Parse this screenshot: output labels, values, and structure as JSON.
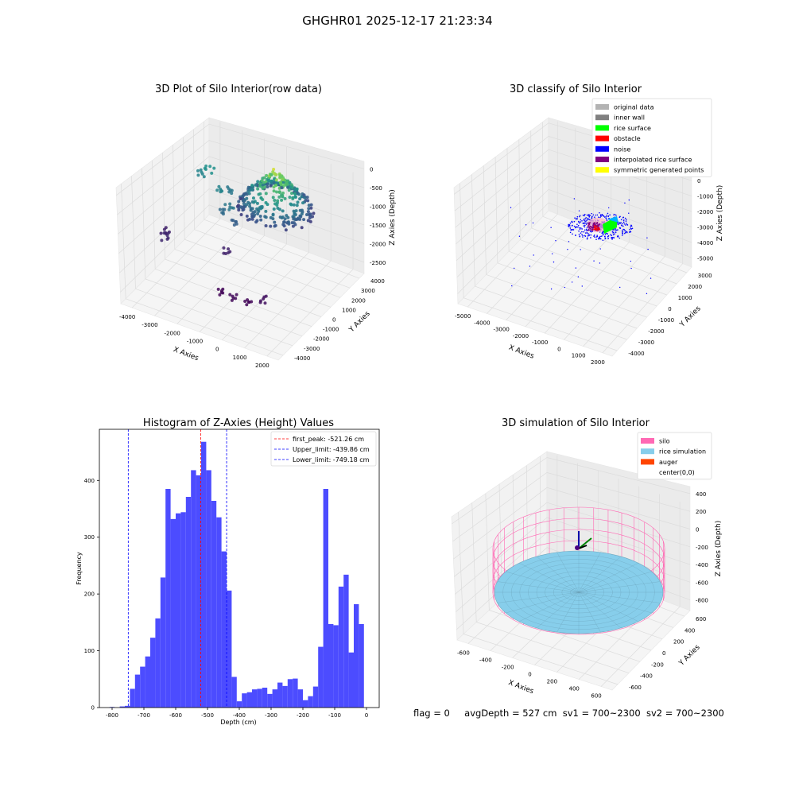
{
  "figure": {
    "suptitle": "GHGHR01 2025-12-17 21:23:34",
    "status": {
      "flag": "flag = 0",
      "avg": "avgDepth = 527 cm",
      "sv1": "sv1 = 700~2300",
      "sv2": "sv2 = 700~2300"
    }
  },
  "chart_data": [
    {
      "type": "scatter",
      "projection": "3d",
      "title": "3D Plot of Silo Interior(row data)",
      "xlabel": "X Axies",
      "ylabel": "Y Axies",
      "zlabel": "Z Axies (Depth)",
      "x_ticks": [
        "-4000",
        "-3000",
        "-2000",
        "-1000",
        "0",
        "1000",
        "2000"
      ],
      "y_ticks": [
        "4000",
        "3000",
        "2000",
        "1000",
        "0",
        "-1000",
        "-2000",
        "-3000",
        "-4000"
      ],
      "z_ticks": [
        "0",
        "-500",
        "-1000",
        "-1500",
        "-2000",
        "-2500"
      ],
      "colormap": "viridis",
      "grid": true
    },
    {
      "type": "scatter",
      "projection": "3d",
      "title": "3D classify of Silo Interior",
      "xlabel": "X Axies",
      "ylabel": "Y Axies",
      "zlabel": "Z Axies (Depth)",
      "x_ticks": [
        "-5000",
        "-4000",
        "-3000",
        "-2000",
        "-1000",
        "0",
        "1000",
        "2000"
      ],
      "y_ticks": [
        "3000",
        "2000",
        "1000",
        "0",
        "-1000",
        "-2000",
        "-3000",
        "-4000"
      ],
      "z_ticks": [
        "1000",
        "0",
        "-1000",
        "-2000",
        "-3000",
        "-4000",
        "-5000"
      ],
      "legend_position": "top-right",
      "legend": [
        {
          "label": "original data",
          "color": "#b3b3b3"
        },
        {
          "label": "inner wall",
          "color": "#808080"
        },
        {
          "label": "rice surface",
          "color": "#00ff00"
        },
        {
          "label": "obstacle",
          "color": "#ff0000"
        },
        {
          "label": "noise",
          "color": "#0000ff"
        },
        {
          "label": "interpolated rice surface",
          "color": "#800080"
        },
        {
          "label": "symmetric generated points",
          "color": "#ffff00"
        }
      ],
      "grid": true
    },
    {
      "type": "bar",
      "title": "Histogram of Z-Axies (Height) Values",
      "xlabel": "Depth (cm)",
      "ylabel": "Frequency",
      "xlim": [
        -840,
        40
      ],
      "ylim": [
        0,
        490
      ],
      "x_ticks": [
        -800,
        -700,
        -600,
        -500,
        -400,
        -300,
        -200,
        -100,
        0
      ],
      "y_ticks": [
        0,
        100,
        200,
        300,
        400
      ],
      "bin_width": 16,
      "bar_color": "#4c4cff",
      "bins_left": [
        -808,
        -792,
        -776,
        -760,
        -744,
        -728,
        -712,
        -696,
        -680,
        -664,
        -648,
        -632,
        -616,
        -600,
        -584,
        -568,
        -552,
        -536,
        -520,
        -504,
        -488,
        -472,
        -456,
        -440,
        -424,
        -408,
        -392,
        -376,
        -360,
        -344,
        -328,
        -312,
        -296,
        -280,
        -264,
        -248,
        -232,
        -216,
        -200,
        -184,
        -168,
        -152,
        -136,
        -120,
        -104,
        -88,
        -72,
        -56,
        -40,
        -24,
        -8
      ],
      "values": [
        1,
        0,
        2,
        3,
        33,
        58,
        72,
        90,
        123,
        157,
        229,
        385,
        332,
        342,
        344,
        371,
        418,
        409,
        468,
        418,
        364,
        335,
        275,
        206,
        54,
        11,
        25,
        27,
        32,
        33,
        35,
        24,
        32,
        44,
        38,
        50,
        51,
        32,
        13,
        20,
        37,
        107,
        385,
        147,
        145,
        213,
        234,
        97,
        182,
        147,
        0
      ],
      "lines": [
        {
          "label": "first_peak: -521.26 cm",
          "x": -521.26,
          "color": "#ff0000"
        },
        {
          "label": "Upper_limit: -439.86 cm",
          "x": -439.86,
          "color": "#0000ff"
        },
        {
          "label": "Lower_limit: -749.18 cm",
          "x": -749.18,
          "color": "#0000ff"
        }
      ],
      "legend_position": "top-right"
    },
    {
      "type": "surface",
      "projection": "3d",
      "title": "3D simulation of Silo Interior",
      "xlabel": "X Axies",
      "ylabel": "Y Axies",
      "zlabel": "Z Axies (Depth)",
      "x_ticks": [
        "-600",
        "-400",
        "-200",
        "0",
        "200",
        "400",
        "600"
      ],
      "y_ticks": [
        "600",
        "400",
        "200",
        "0",
        "-200",
        "-400",
        "-600"
      ],
      "z_ticks": [
        "400",
        "200",
        "0",
        "-200",
        "-400",
        "-600",
        "-800"
      ],
      "legend_position": "top-right",
      "legend": [
        {
          "label": "silo",
          "color": "#ff69b4"
        },
        {
          "label": "rice simulation",
          "color": "#87ceeb"
        },
        {
          "label": "auger",
          "color": "#ff4500"
        },
        {
          "label": "center(0,0)",
          "color": ""
        }
      ],
      "grid": true
    }
  ]
}
